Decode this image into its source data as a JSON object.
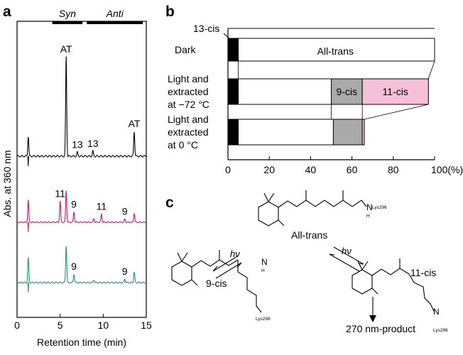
{
  "panels": {
    "a": "a",
    "b": "b",
    "c": "c"
  },
  "chart_data": [
    {
      "type": "line",
      "panel": "a",
      "header_bars": [
        "Syn",
        "Anti"
      ],
      "xlabel": "Retention time (min)",
      "ylabel": "Abs. at 360 nm",
      "xlim": [
        0,
        15
      ],
      "xticks": [
        "0",
        "5",
        "10",
        "15"
      ],
      "series": [
        {
          "color": "#000000",
          "peaks": [
            {
              "x": 1.3,
              "h": 0.2
            },
            {
              "x": 5.7,
              "h": 1.0,
              "label": "AT"
            },
            {
              "x": 7.0,
              "h": 0.04,
              "label": "13"
            },
            {
              "x": 8.8,
              "h": 0.05,
              "label": "13"
            },
            {
              "x": 13.6,
              "h": 0.25,
              "label": "AT"
            }
          ]
        },
        {
          "color": "#d0157a",
          "peaks": [
            {
              "x": 1.3,
              "h": 0.35
            },
            {
              "x": 5.0,
              "h": 0.33,
              "label": "11"
            },
            {
              "x": 5.7,
              "h": 0.5
            },
            {
              "x": 6.6,
              "h": 0.16,
              "label": "9"
            },
            {
              "x": 8.9,
              "h": 0.06
            },
            {
              "x": 9.8,
              "h": 0.13,
              "label": "11"
            },
            {
              "x": 12.5,
              "h": 0.05,
              "label": "9"
            },
            {
              "x": 13.6,
              "h": 0.14
            }
          ]
        },
        {
          "color": "#1e9a6e",
          "peaks": [
            {
              "x": 1.3,
              "h": 0.35
            },
            {
              "x": 5.7,
              "h": 0.52
            },
            {
              "x": 6.6,
              "h": 0.12,
              "label": "9"
            },
            {
              "x": 8.9,
              "h": 0.04
            },
            {
              "x": 12.5,
              "h": 0.05,
              "label": "9"
            },
            {
              "x": 13.6,
              "h": 0.15
            }
          ]
        }
      ]
    },
    {
      "type": "bar",
      "panel": "b",
      "orientation": "horizontal",
      "stacked": true,
      "xlim": [
        0,
        100
      ],
      "xticks": [
        "0",
        "20",
        "40",
        "60",
        "80",
        "100(%)"
      ],
      "annotation": "13-cis",
      "categories": [
        {
          "lines": [
            "Dark"
          ]
        },
        {
          "lines": [
            "Light and",
            "extracted",
            "at −72 °C"
          ]
        },
        {
          "lines": [
            "Light and",
            "extracted",
            "at 0 °C"
          ]
        }
      ],
      "series": [
        {
          "name": "13-cis",
          "color": "#000000",
          "values": [
            5,
            5,
            5
          ]
        },
        {
          "name": "All-trans",
          "color": "#ffffff",
          "values": [
            95,
            45,
            46
          ]
        },
        {
          "name": "9-cis",
          "color": "#aaaaaa",
          "values": [
            0,
            15,
            14
          ]
        },
        {
          "name": "11-cis",
          "color": "#f5c0d8",
          "values": [
            0,
            32,
            1
          ]
        }
      ],
      "bar_labels": {
        "all_trans": "All-trans",
        "nine_cis": "9-cis",
        "eleven_cis": "11-cis"
      }
    }
  ],
  "scheme": {
    "all_trans": "All-trans",
    "nine_cis": "9-cis",
    "eleven_cis": "11-cis",
    "hv": "hν",
    "product": "270 nm-product",
    "lys": "Lys296",
    "nh": "N",
    "h": "H"
  }
}
